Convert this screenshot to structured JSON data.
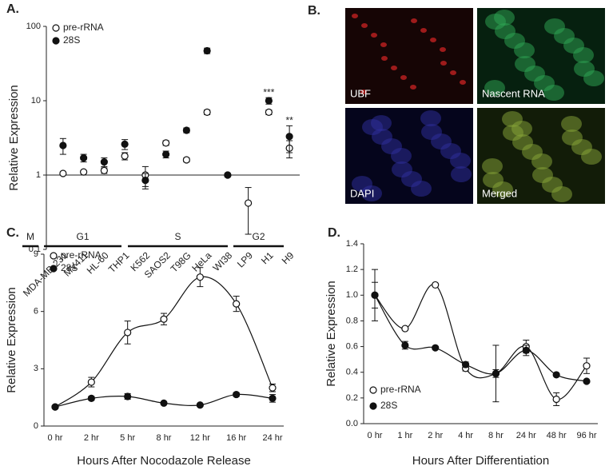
{
  "chart_data": [
    {
      "type": "scatter",
      "panel": "A.",
      "ylabel": "Relative Expression",
      "categories": [
        "MDA-MB-231",
        "MV411",
        "HL-60",
        "THP1",
        "K562",
        "SAOS2",
        "T98G",
        "HeLa",
        "WI38",
        "LP9",
        "H1",
        "H9"
      ],
      "series": [
        {
          "name": "pre-rRNA",
          "marker": "open",
          "color": "#111111",
          "values": [
            1.05,
            1.1,
            1.15,
            1.8,
            1.0,
            2.7,
            1.6,
            7,
            1.0,
            0.42,
            7,
            2.3
          ],
          "errors": [
            0.05,
            0.05,
            0.1,
            0.2,
            0.3,
            0.2,
            0.1,
            0.5,
            0.05,
            0.26,
            0.5,
            0.6
          ]
        },
        {
          "name": "28S",
          "marker": "filled",
          "color": "#111111",
          "values": [
            2.5,
            1.7,
            1.5,
            2.6,
            0.85,
            1.9,
            4,
            47,
            1.0,
            null,
            10,
            3.3
          ],
          "errors": [
            0.6,
            0.2,
            0.2,
            0.4,
            0.2,
            0.2,
            0.3,
            4,
            0.05,
            null,
            1,
            1.3
          ]
        }
      ],
      "ylim": [
        0.1,
        100
      ],
      "yticks": [
        0.1,
        1,
        10,
        100
      ],
      "log_scale": true,
      "reference_line": 1,
      "annotations": [
        {
          "text": "***",
          "category": "H1"
        },
        {
          "text": "**",
          "category": "H9"
        }
      ],
      "legend": "upper left"
    },
    {
      "type": "image-grid",
      "panel": "B.",
      "images": [
        "UBF",
        "Nascent RNA",
        "DAPI",
        "Merged"
      ]
    },
    {
      "type": "line",
      "panel": "C.",
      "phases": [
        "M",
        "G1",
        "S",
        "G2"
      ],
      "xlabel": "Hours After Nocodazole Release",
      "ylabel": "Relative Expression",
      "categories": [
        "0 hr",
        "2 hr",
        "5 hr",
        "8 hr",
        "12 hr",
        "16 hr",
        "24 hr"
      ],
      "series": [
        {
          "name": "pre-rRNA",
          "marker": "open",
          "color": "#111111",
          "values": [
            1.0,
            2.3,
            4.9,
            5.6,
            7.8,
            6.4,
            2.0
          ],
          "errors": [
            0.05,
            0.25,
            0.6,
            0.3,
            0.5,
            0.4,
            0.2
          ]
        },
        {
          "name": "28S",
          "marker": "filled",
          "color": "#111111",
          "values": [
            1.0,
            1.45,
            1.55,
            1.2,
            1.1,
            1.65,
            1.45
          ],
          "errors": [
            0.05,
            0.1,
            0.15,
            0.05,
            0.05,
            0.1,
            0.2
          ]
        }
      ],
      "ylim": [
        0,
        9
      ],
      "yticks": [
        0,
        3,
        6,
        9
      ],
      "smooth": true,
      "legend": "upper left"
    },
    {
      "type": "line",
      "panel": "D.",
      "xlabel": "Hours After Differentiation",
      "ylabel": "Relative Expression",
      "categories": [
        "0 hr",
        "1 hr",
        "2 hr",
        "4 hr",
        "8 hr",
        "24 hr",
        "48 hr",
        "96 hr"
      ],
      "series": [
        {
          "name": "pre-rRNA",
          "marker": "open",
          "color": "#111111",
          "values": [
            1.0,
            0.74,
            1.08,
            0.43,
            0.39,
            0.6,
            0.19,
            0.45
          ],
          "errors": [
            0.1,
            0.01,
            0.01,
            0.02,
            0.03,
            0.05,
            0.05,
            0.06
          ]
        },
        {
          "name": "28S",
          "marker": "filled",
          "color": "#111111",
          "values": [
            1.0,
            0.61,
            0.59,
            0.46,
            0.39,
            0.57,
            0.38,
            0.33
          ],
          "errors": [
            0.2,
            0.03,
            0.01,
            0.02,
            0.22,
            0.04,
            0.01,
            0.01
          ]
        }
      ],
      "ylim": [
        0,
        1.4
      ],
      "yticks": [
        {
          "value": 0,
          "label": "0.0"
        },
        {
          "value": 0.2,
          "label": "0.2"
        },
        {
          "value": 0.4,
          "label": "0.4"
        },
        {
          "value": 0.6,
          "label": "0.6"
        },
        {
          "value": 0.8,
          "label": "0.8"
        },
        {
          "value": 1,
          "label": "1.0"
        },
        {
          "value": 1.2,
          "label": "1.2"
        },
        {
          "value": 1.4,
          "label": "1.4"
        }
      ],
      "smooth": true,
      "legend": "lower left"
    }
  ]
}
